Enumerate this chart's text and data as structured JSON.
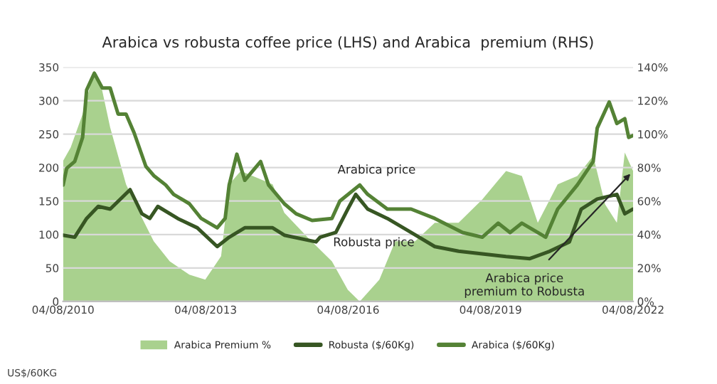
{
  "chart_data": {
    "type": "line",
    "title": "Arabica vs robusta coffee price (LHS) and Arabica  premium (RHS)",
    "xlim": [
      "2010-08-04",
      "2022-08-04"
    ],
    "xticks": [
      {
        "value": "2010-08-04",
        "label": "04/08/2010"
      },
      {
        "value": "2013-08-04",
        "label": "04/08/2013"
      },
      {
        "value": "2016-08-04",
        "label": "04/08/2016"
      },
      {
        "value": "2019-08-04",
        "label": "04/08/2019"
      },
      {
        "value": "2022-08-04",
        "label": "04/08/2022"
      }
    ],
    "ylim": [
      0,
      350
    ],
    "yticks": [
      0,
      50,
      100,
      150,
      200,
      250,
      300,
      350
    ],
    "y2lim": [
      0,
      140
    ],
    "y2ticks": [
      {
        "value": 0,
        "label": "0%"
      },
      {
        "value": 20,
        "label": "20%"
      },
      {
        "value": 40,
        "label": "40%"
      },
      {
        "value": 60,
        "label": "60%"
      },
      {
        "value": 80,
        "label": "80%"
      },
      {
        "value": 100,
        "label": "100%"
      },
      {
        "value": 120,
        "label": "120%"
      },
      {
        "value": 140,
        "label": "140%"
      }
    ],
    "grid": "y",
    "legend": "bottom",
    "marker": "none",
    "line_style": "solid",
    "series": [
      {
        "name": "Arabica Premium %",
        "type": "area",
        "axis": "y2",
        "color": "#a9d18e",
        "x": [
          "2010-08-04",
          "2010-10",
          "2011-01",
          "2011-04",
          "2011-06",
          "2011-08",
          "2011-12",
          "2012-04",
          "2012-07",
          "2012-11",
          "2013-04",
          "2013-08",
          "2013-12",
          "2014-02",
          "2014-05",
          "2014-08",
          "2015-01",
          "2015-04",
          "2015-10",
          "2016-04",
          "2016-08",
          "2016-11",
          "2017-04",
          "2017-08",
          "2018-01",
          "2018-06",
          "2018-12",
          "2019-06",
          "2019-12",
          "2020-04",
          "2020-08",
          "2021-01",
          "2021-06",
          "2021-10",
          "2022-01",
          "2022-04",
          "2022-06",
          "2022-08-04"
        ],
        "values": [
          84,
          92,
          112,
          138,
          126,
          104,
          70,
          50,
          36,
          24,
          16,
          13,
          27,
          70,
          78,
          75,
          70,
          53,
          38,
          24,
          7,
          0,
          13,
          36,
          36,
          47,
          47,
          61,
          78,
          75,
          47,
          70,
          75,
          87,
          58,
          47,
          89,
          78
        ]
      },
      {
        "name": "Robusta ($/60Kg)",
        "color": "#375623",
        "x": [
          "2010-08-04",
          "2010-11",
          "2011-02",
          "2011-05",
          "2011-08",
          "2012-01",
          "2012-04",
          "2012-06",
          "2012-08",
          "2013-01",
          "2013-06",
          "2013-11",
          "2014-02",
          "2014-06",
          "2015-01",
          "2015-04",
          "2015-12",
          "2016-01",
          "2016-05",
          "2016-08",
          "2016-10",
          "2017-01",
          "2017-06",
          "2017-12",
          "2018-06",
          "2018-12",
          "2019-06",
          "2019-12",
          "2020-06",
          "2020-11",
          "2021-04",
          "2021-07",
          "2021-11",
          "2022-04",
          "2022-06",
          "2022-08-04"
        ],
        "values": [
          99,
          96,
          124,
          142,
          138,
          167,
          131,
          124,
          142,
          124,
          110,
          82,
          96,
          110,
          110,
          99,
          89,
          96,
          103,
          138,
          160,
          138,
          124,
          103,
          82,
          75,
          71,
          67,
          64,
          75,
          89,
          138,
          153,
          160,
          131,
          138
        ]
      },
      {
        "name": "Arabica ($/60Kg)",
        "color": "#548235",
        "x": [
          "2010-08-04",
          "2010-09",
          "2010-11",
          "2011-01",
          "2011-02",
          "2011-04",
          "2011-06",
          "2011-08",
          "2011-10",
          "2011-12",
          "2012-02",
          "2012-05",
          "2012-07",
          "2012-10",
          "2012-12",
          "2013-04",
          "2013-07",
          "2013-11",
          "2014-01",
          "2014-02",
          "2014-04",
          "2014-06",
          "2014-10",
          "2014-12",
          "2015-04",
          "2015-07",
          "2015-11",
          "2016-04",
          "2016-06",
          "2016-11",
          "2017-01",
          "2017-06",
          "2017-12",
          "2018-06",
          "2019-01",
          "2019-06",
          "2019-10",
          "2020-01",
          "2020-04",
          "2020-10",
          "2021-01",
          "2021-06",
          "2021-10",
          "2021-11",
          "2022-02",
          "2022-04",
          "2022-06",
          "2022-07",
          "2022-08-04"
        ],
        "values": [
          174,
          199,
          209,
          245,
          316,
          341,
          319,
          319,
          280,
          280,
          252,
          202,
          188,
          174,
          160,
          146,
          124,
          110,
          124,
          174,
          220,
          181,
          209,
          174,
          146,
          131,
          121,
          124,
          150,
          174,
          160,
          138,
          138,
          124,
          103,
          96,
          117,
          103,
          117,
          96,
          138,
          174,
          209,
          259,
          298,
          266,
          273,
          245,
          248
        ]
      }
    ],
    "annotations": [
      "Arabica price",
      "Robusta price",
      {
        "text": "Arabica price\npremium to Robusta",
        "x": "2022-08-04",
        "y": 195
      },
      "US$/60KG"
    ]
  }
}
